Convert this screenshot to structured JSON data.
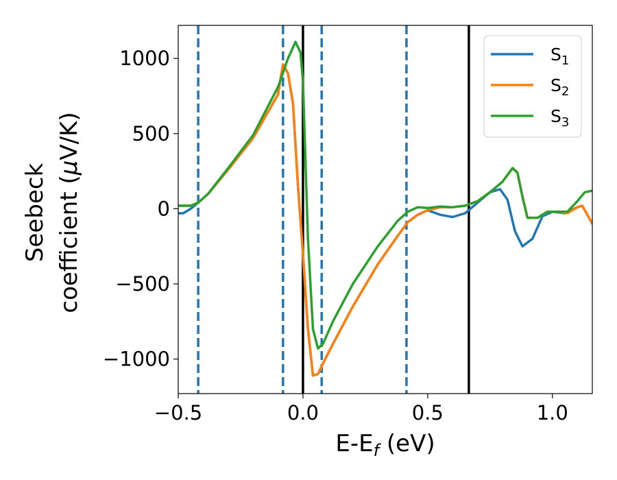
{
  "chart_data": {
    "type": "line",
    "title": "",
    "xlabel": {
      "main": "E-E",
      "sub": "f",
      "tail": " (eV)"
    },
    "ylabel": {
      "line1": "Seebeck",
      "line2_pre": "coefficient  (",
      "line2_mu": "μ",
      "line2_post": "V/K)"
    },
    "xlim": [
      -0.5,
      1.16
    ],
    "ylim": [
      -1230,
      1220
    ],
    "xticks": [
      {
        "value": -0.5,
        "label": "−0.5"
      },
      {
        "value": 0.0,
        "label": "0.0"
      },
      {
        "value": 0.5,
        "label": "0.5"
      },
      {
        "value": 1.0,
        "label": "1.0"
      }
    ],
    "yticks": [
      {
        "value": 1000,
        "label": "1000"
      },
      {
        "value": 500,
        "label": "500"
      },
      {
        "value": 0,
        "label": "0"
      },
      {
        "value": -500,
        "label": "−500"
      },
      {
        "value": -1000,
        "label": "−1000"
      }
    ],
    "grid": false,
    "legend_position": "top-right",
    "vlines": [
      {
        "x": -0.42,
        "style": "dashed",
        "color": "#1f77b4"
      },
      {
        "x": -0.08,
        "style": "dashed",
        "color": "#1f77b4"
      },
      {
        "x": 0.075,
        "style": "dashed",
        "color": "#1f77b4"
      },
      {
        "x": 0.415,
        "style": "dashed",
        "color": "#1f77b4"
      },
      {
        "x": 0.0,
        "style": "solid",
        "color": "#000000"
      },
      {
        "x": 0.665,
        "style": "solid",
        "color": "#000000"
      }
    ],
    "series": [
      {
        "name": "S",
        "sub": "1",
        "color": "#1f77b4",
        "points": [
          [
            -0.5,
            -30
          ],
          [
            -0.48,
            -30
          ],
          [
            -0.45,
            0
          ],
          [
            -0.42,
            40
          ],
          [
            -0.38,
            100
          ],
          [
            -0.3,
            260
          ],
          [
            -0.2,
            470
          ],
          [
            -0.1,
            760
          ],
          [
            -0.08,
            960
          ],
          [
            -0.06,
            900
          ],
          [
            -0.04,
            700
          ],
          [
            -0.02,
            150
          ],
          [
            0.0,
            -300
          ],
          [
            0.02,
            -800
          ],
          [
            0.04,
            -1110
          ],
          [
            0.06,
            -1100
          ],
          [
            0.08,
            -1030
          ],
          [
            0.12,
            -900
          ],
          [
            0.2,
            -650
          ],
          [
            0.3,
            -370
          ],
          [
            0.38,
            -180
          ],
          [
            0.42,
            -90
          ],
          [
            0.46,
            -40
          ],
          [
            0.5,
            -10
          ],
          [
            0.55,
            -40
          ],
          [
            0.6,
            -55
          ],
          [
            0.65,
            -30
          ],
          [
            0.7,
            40
          ],
          [
            0.75,
            110
          ],
          [
            0.79,
            130
          ],
          [
            0.82,
            60
          ],
          [
            0.85,
            -150
          ],
          [
            0.88,
            -250
          ],
          [
            0.92,
            -200
          ],
          [
            0.96,
            -50
          ],
          [
            1.0,
            -20
          ],
          [
            1.05,
            -30
          ],
          [
            1.1,
            10
          ],
          [
            1.12,
            20
          ],
          [
            1.16,
            -100
          ]
        ]
      },
      {
        "name": "S",
        "sub": "2",
        "color": "#ff7f0e",
        "points": [
          [
            -0.5,
            20
          ],
          [
            -0.45,
            20
          ],
          [
            -0.42,
            40
          ],
          [
            -0.38,
            100
          ],
          [
            -0.3,
            260
          ],
          [
            -0.2,
            470
          ],
          [
            -0.1,
            760
          ],
          [
            -0.08,
            960
          ],
          [
            -0.06,
            900
          ],
          [
            -0.04,
            700
          ],
          [
            -0.02,
            150
          ],
          [
            0.0,
            -300
          ],
          [
            0.02,
            -800
          ],
          [
            0.04,
            -1110
          ],
          [
            0.06,
            -1100
          ],
          [
            0.08,
            -1030
          ],
          [
            0.12,
            -900
          ],
          [
            0.2,
            -650
          ],
          [
            0.3,
            -370
          ],
          [
            0.38,
            -180
          ],
          [
            0.42,
            -90
          ],
          [
            0.46,
            -40
          ],
          [
            0.5,
            -10
          ],
          [
            0.55,
            10
          ],
          [
            0.6,
            10
          ],
          [
            0.65,
            20
          ],
          [
            0.7,
            50
          ],
          [
            0.75,
            110
          ],
          [
            0.8,
            180
          ],
          [
            0.84,
            270
          ],
          [
            0.86,
            240
          ],
          [
            0.88,
            80
          ],
          [
            0.9,
            -60
          ],
          [
            0.94,
            -60
          ],
          [
            0.98,
            -20
          ],
          [
            1.02,
            -20
          ],
          [
            1.06,
            -30
          ],
          [
            1.1,
            10
          ],
          [
            1.12,
            20
          ],
          [
            1.16,
            -100
          ]
        ]
      },
      {
        "name": "S",
        "sub": "3",
        "color": "#2ca02c",
        "points": [
          [
            -0.5,
            20
          ],
          [
            -0.45,
            20
          ],
          [
            -0.42,
            40
          ],
          [
            -0.38,
            100
          ],
          [
            -0.3,
            270
          ],
          [
            -0.2,
            490
          ],
          [
            -0.1,
            810
          ],
          [
            -0.06,
            1000
          ],
          [
            -0.03,
            1110
          ],
          [
            -0.01,
            1040
          ],
          [
            0.0,
            850
          ],
          [
            0.02,
            -200
          ],
          [
            0.04,
            -800
          ],
          [
            0.06,
            -930
          ],
          [
            0.08,
            -900
          ],
          [
            0.12,
            -750
          ],
          [
            0.2,
            -500
          ],
          [
            0.3,
            -250
          ],
          [
            0.38,
            -80
          ],
          [
            0.42,
            -20
          ],
          [
            0.46,
            10
          ],
          [
            0.5,
            5
          ],
          [
            0.55,
            15
          ],
          [
            0.6,
            10
          ],
          [
            0.65,
            20
          ],
          [
            0.7,
            50
          ],
          [
            0.75,
            110
          ],
          [
            0.8,
            180
          ],
          [
            0.84,
            270
          ],
          [
            0.86,
            240
          ],
          [
            0.88,
            80
          ],
          [
            0.9,
            -60
          ],
          [
            0.94,
            -60
          ],
          [
            0.98,
            -20
          ],
          [
            1.02,
            -20
          ],
          [
            1.06,
            -20
          ],
          [
            1.1,
            50
          ],
          [
            1.13,
            110
          ],
          [
            1.16,
            120
          ]
        ]
      }
    ]
  }
}
